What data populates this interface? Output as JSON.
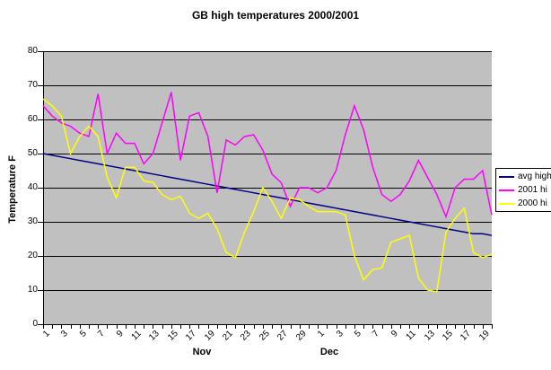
{
  "chart_data": {
    "type": "line",
    "title": "GB high temperatures 2000/2001",
    "legend_position": "right",
    "grid": true,
    "plot_bg_color": "#c0c0c0",
    "grid_color": "#000000",
    "y_axis": {
      "title": "Temperature F",
      "min": 0,
      "max": 80,
      "tick_step": 10,
      "ticks": [
        "0",
        "10",
        "20",
        "30",
        "40",
        "50",
        "60",
        "70",
        "80"
      ]
    },
    "x_axis": {
      "month_labels": [
        "Nov",
        "Dec"
      ],
      "n_points": 50,
      "x_ticks": [
        {
          "i": 0,
          "label": "1"
        },
        {
          "i": 2,
          "label": "3"
        },
        {
          "i": 4,
          "label": "5"
        },
        {
          "i": 6,
          "label": "7"
        },
        {
          "i": 8,
          "label": "9"
        },
        {
          "i": 10,
          "label": "11"
        },
        {
          "i": 12,
          "label": "13"
        },
        {
          "i": 14,
          "label": "15"
        },
        {
          "i": 16,
          "label": "17"
        },
        {
          "i": 18,
          "label": "19"
        },
        {
          "i": 20,
          "label": "21"
        },
        {
          "i": 22,
          "label": "23"
        },
        {
          "i": 24,
          "label": "25"
        },
        {
          "i": 26,
          "label": "27"
        },
        {
          "i": 28,
          "label": "29"
        },
        {
          "i": 30,
          "label": "1"
        },
        {
          "i": 32,
          "label": "3"
        },
        {
          "i": 34,
          "label": "5"
        },
        {
          "i": 36,
          "label": "7"
        },
        {
          "i": 38,
          "label": "9"
        },
        {
          "i": 40,
          "label": "11"
        },
        {
          "i": 42,
          "label": "13"
        },
        {
          "i": 44,
          "label": "15"
        },
        {
          "i": 46,
          "label": "17"
        },
        {
          "i": 48,
          "label": "19"
        }
      ]
    },
    "categories": [
      "Nov 1",
      "Nov 2",
      "Nov 3",
      "Nov 4",
      "Nov 5",
      "Nov 6",
      "Nov 7",
      "Nov 8",
      "Nov 9",
      "Nov 10",
      "Nov 11",
      "Nov 12",
      "Nov 13",
      "Nov 14",
      "Nov 15",
      "Nov 16",
      "Nov 17",
      "Nov 18",
      "Nov 19",
      "Nov 20",
      "Nov 21",
      "Nov 22",
      "Nov 23",
      "Nov 24",
      "Nov 25",
      "Nov 26",
      "Nov 27",
      "Nov 28",
      "Nov 29",
      "Nov 30",
      "Dec 1",
      "Dec 2",
      "Dec 3",
      "Dec 4",
      "Dec 5",
      "Dec 6",
      "Dec 7",
      "Dec 8",
      "Dec 9",
      "Dec 10",
      "Dec 11",
      "Dec 12",
      "Dec 13",
      "Dec 14",
      "Dec 15",
      "Dec 16",
      "Dec 17",
      "Dec 18",
      "Dec 19",
      "Dec 20"
    ],
    "series": [
      {
        "name": "avg high",
        "color": "#000080",
        "values": [
          50,
          49.5,
          49,
          48.5,
          48,
          47.5,
          47,
          46.5,
          46,
          45.5,
          45,
          44.5,
          44,
          43.5,
          43,
          42.5,
          42,
          41.5,
          41,
          40.5,
          40,
          39.5,
          39,
          38.5,
          38,
          37.5,
          37,
          36.5,
          36,
          35.5,
          35,
          34.5,
          34,
          33.5,
          33,
          32.5,
          32,
          31.5,
          31,
          30.5,
          30,
          29.5,
          29,
          28.5,
          28,
          27.5,
          27,
          26.5,
          26.5,
          26
        ]
      },
      {
        "name": "2001 hi",
        "color": "#ff00ff",
        "values": [
          64,
          61,
          59,
          58,
          56,
          55,
          67.5,
          50,
          56,
          53,
          53,
          47,
          50,
          59,
          68,
          48,
          61,
          62,
          55,
          38.5,
          54,
          52.5,
          55,
          55.5,
          51,
          44,
          41.5,
          34.5,
          40,
          40,
          38.5,
          40,
          45,
          55.5,
          64,
          57,
          46,
          38,
          36,
          38,
          42,
          48,
          43,
          38,
          31.5,
          40,
          42.5,
          42.5,
          45,
          32
        ]
      },
      {
        "name": "2000 hi",
        "color": "#ffff00",
        "values": [
          66,
          64,
          61,
          50,
          55,
          58,
          55,
          43,
          37,
          46,
          46,
          42,
          41.5,
          38,
          36.5,
          37.5,
          32.5,
          31,
          32.5,
          28,
          21,
          19.5,
          27,
          33,
          40,
          36,
          31,
          37,
          36.5,
          34.5,
          33,
          33,
          33,
          32,
          20,
          13,
          16,
          16.5,
          24,
          25,
          26,
          13.5,
          10,
          9.5,
          27,
          31,
          34,
          21,
          19.5,
          20.5
        ]
      }
    ]
  }
}
